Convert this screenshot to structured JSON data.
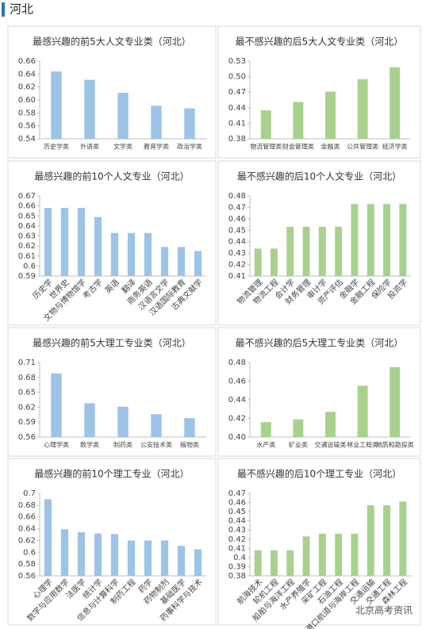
{
  "header": {
    "title": "河北"
  },
  "watermark": "北京高考资讯",
  "chart_data": [
    {
      "type": "bar",
      "title": "最感兴趣的前5大人文专业类（河北）",
      "color": "#9dc3e6",
      "categories": [
        "历史学类",
        "外语类",
        "文学类",
        "教育学类",
        "政治学类"
      ],
      "values": [
        0.644,
        0.631,
        0.611,
        0.591,
        0.587
      ],
      "ylim": [
        0.54,
        0.66
      ],
      "yticks": [
        0.54,
        0.56,
        0.58,
        {
          "value": 0.6,
          "label": "0.60"
        },
        0.62,
        0.64,
        0.66
      ]
    },
    {
      "type": "bar",
      "title": "最不感兴趣的后5大人文专业类（河北）",
      "color": "#a9d18e",
      "categories": [
        "物流管理类",
        "财会管理类",
        "金融类",
        "公共管理类",
        "经济学类"
      ],
      "values": [
        0.435,
        0.451,
        0.471,
        0.495,
        0.518
      ],
      "ylim": [
        0.38,
        0.53
      ],
      "yticks": [
        0.38,
        0.41,
        0.44,
        0.47,
        {
          "value": 0.5,
          "label": "0.50"
        },
        0.53
      ]
    },
    {
      "type": "bar",
      "title": "最感兴趣的前10个人文专业（河北）",
      "color": "#9dc3e6",
      "categories": [
        "历史学",
        "世界史",
        "文物与博物馆学",
        "考古学",
        "英语",
        "翻译",
        "商务英语",
        "汉语言文学",
        "汉语国际教育",
        "古典文献学"
      ],
      "values": [
        0.658,
        0.658,
        0.658,
        0.649,
        0.633,
        0.633,
        0.633,
        0.619,
        0.619,
        0.615
      ],
      "ylim": [
        0.59,
        0.67
      ],
      "yticks": [
        0.59,
        0.6,
        0.61,
        0.62,
        0.63,
        0.64,
        0.65,
        0.66,
        0.67
      ]
    },
    {
      "type": "bar",
      "title": "最不感兴趣的后10个人文专业（河北）",
      "color": "#a9d18e",
      "categories": [
        "物流管理",
        "物流工程",
        "会计学",
        "财务管理",
        "审计学",
        "资产评估",
        "金融学",
        "金融工程",
        "保险学",
        "投资学"
      ],
      "values": [
        0.434,
        0.434,
        0.453,
        0.453,
        0.453,
        0.453,
        0.473,
        0.473,
        0.473,
        0.473
      ],
      "ylim": [
        0.41,
        0.48
      ],
      "yticks": [
        0.41,
        0.42,
        0.43,
        0.44,
        0.45,
        0.46,
        0.47,
        0.48
      ]
    },
    {
      "type": "bar",
      "title": "最感兴趣的前5大理工专业类（河北）",
      "color": "#9dc3e6",
      "categories": [
        "心理学类",
        "数学类",
        "制药类",
        "公安技术类",
        "植物类"
      ],
      "values": [
        0.688,
        0.628,
        0.621,
        0.606,
        0.598
      ],
      "ylim": [
        0.56,
        0.71
      ],
      "yticks": [
        0.56,
        0.59,
        0.62,
        0.65,
        0.68,
        0.71
      ]
    },
    {
      "type": "bar",
      "title": "最不感兴趣的后5大理工专业类（河北）",
      "color": "#a9d18e",
      "categories": [
        "水产类",
        "矿业类",
        "交通运输类",
        "林业工程类",
        "地质和勘探类"
      ],
      "values": [
        0.416,
        0.419,
        0.427,
        0.455,
        0.475
      ],
      "ylim": [
        0.4,
        0.48
      ],
      "yticks": [
        {
          "value": 0.4,
          "label": "0.40"
        },
        0.42,
        0.44,
        0.46,
        0.48
      ]
    },
    {
      "type": "bar",
      "title": "最感兴趣的前10个理工专业（河北）",
      "color": "#9dc3e6",
      "categories": [
        "心理学",
        "数学与应用数学",
        "法医学",
        "统计学",
        "信息与计算科学",
        "制药工程",
        "药学",
        "药物制剂",
        "基础医学",
        "药事科学与技术"
      ],
      "values": [
        0.69,
        0.639,
        0.634,
        0.632,
        0.631,
        0.62,
        0.62,
        0.62,
        0.611,
        0.605
      ],
      "ylim": [
        0.56,
        0.7
      ],
      "yticks": [
        0.56,
        0.58,
        0.6,
        0.62,
        0.64,
        0.66,
        0.68,
        0.7
      ]
    },
    {
      "type": "bar",
      "title": "最不感兴趣的后10个理工专业（河北）",
      "color": "#a9d18e",
      "categories": [
        "航海技术",
        "轮机工程",
        "船舶与海洋工程",
        "水产养殖学",
        "采矿工程",
        "石油工程",
        "港口航道与海岸工程",
        "交通运输",
        "交通工程",
        "森林工程"
      ],
      "values": [
        0.408,
        0.408,
        0.408,
        0.423,
        0.426,
        0.426,
        0.426,
        0.457,
        0.457,
        0.461
      ],
      "ylim": [
        0.38,
        0.47
      ],
      "yticks": [
        0.38,
        0.39,
        0.4,
        0.41,
        0.42,
        0.43,
        0.44,
        0.45,
        0.46,
        0.47
      ]
    }
  ]
}
